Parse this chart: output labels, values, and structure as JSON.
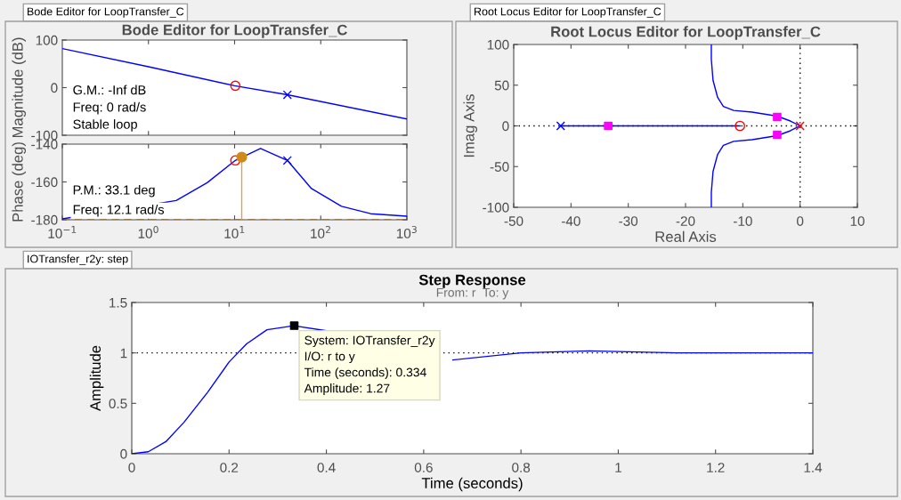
{
  "chart_data": [
    {
      "type": "line",
      "title": "Bode Editor for LoopTransfer_C",
      "ylabel": "Magnitude (dB)",
      "log": "x",
      "xlim": [
        0.1,
        1000
      ],
      "ylim": [
        -100,
        100
      ],
      "yticks": [
        -100,
        0,
        100
      ],
      "tick_labels": "y",
      "annotations": [
        "Bode Editor for LoopTransfer_C",
        "G.M.: -Inf dB",
        "Freq: 0 rad/s",
        "Stable loop"
      ],
      "series": [
        {
          "type": "line",
          "color": "#0000ff",
          "x": [
            0.1,
            1,
            10,
            41,
            1000
          ],
          "values": [
            82,
            44,
            4,
            -15,
            -66
          ]
        },
        {
          "type": "scatter",
          "marker": "circle",
          "color": "#ff0000",
          "x": [
            10.2
          ],
          "values": [
            4
          ]
        },
        {
          "type": "scatter",
          "marker": "cross",
          "color": "#0000ff",
          "x": [
            41
          ],
          "values": [
            -15
          ]
        }
      ]
    },
    {
      "type": "line",
      "ylabel": "Phase (deg)",
      "log": "x",
      "xlim": [
        0.1,
        1000
      ],
      "ylim": [
        -180,
        -140
      ],
      "yticks": [
        -180,
        -160,
        -140
      ],
      "xticks": [
        {
          "value": 0.1,
          "label": "10$^{−1}$"
        },
        {
          "value": 1,
          "label": "10$^{0}$"
        },
        {
          "value": 10,
          "label": "10$^{1}$"
        },
        {
          "value": 100,
          "label": "10$^{2}$"
        },
        {
          "value": 1000,
          "label": "10$^{3}$"
        }
      ],
      "annotations": [
        "P.M.: 33.1 deg",
        "Freq: 12.1 rad/s"
      ],
      "ref_lines": [
        {
          "axis": "y",
          "value": -180,
          "color": "#d9952b",
          "line_style": "dashed"
        }
      ],
      "series": [
        {
          "type": "line",
          "color": "#0000ff",
          "x": [
            0.1,
            2.1,
            4.8,
            10.2,
            20,
            41,
            78,
            174,
            380,
            1000
          ],
          "values": [
            -179.5,
            -169.8,
            -160.4,
            -148.6,
            -142.3,
            -148.6,
            -163.5,
            -172.9,
            -176.8,
            -178.1
          ]
        },
        {
          "type": "scatter",
          "marker": "circle",
          "color": "#ff0000",
          "x": [
            10.2
          ],
          "values": [
            -148.6
          ]
        },
        {
          "type": "scatter",
          "marker": "cross",
          "color": "#0000ff",
          "x": [
            41
          ],
          "values": [
            -148.6
          ]
        },
        {
          "type": "line",
          "color": "#e0a040",
          "x": [
            12.1,
            12.1
          ],
          "values": [
            -180,
            -146.9
          ]
        },
        {
          "type": "lollipop",
          "marker": "circle",
          "color": "#d08a1a",
          "x": [
            12.1
          ],
          "values": [
            -146.9
          ]
        }
      ]
    },
    {
      "type": "line",
      "title": "Root Locus Editor for LoopTransfer_C",
      "xlabel": "Real Axis",
      "ylabel": "Imag Axis",
      "xlim": [
        -50,
        10
      ],
      "ylim": [
        -100,
        100
      ],
      "xticks": [
        -50,
        -40,
        -30,
        -20,
        -10,
        0,
        10
      ],
      "yticks": [
        -100,
        -50,
        0,
        50,
        100
      ],
      "annotations": [
        "Root Locus Editor for LoopTransfer_C"
      ],
      "ref_lines": [
        {
          "axis": "x",
          "value": 0,
          "color": "#000000",
          "line_style": "dotted"
        },
        {
          "axis": "y",
          "value": 0,
          "color": "#000000",
          "line_style": "dotted"
        }
      ],
      "series": [
        {
          "type": "line",
          "color": "#0000ff",
          "x": [
            -41.8,
            -10.5
          ],
          "values": [
            0,
            0
          ]
        },
        {
          "type": "line",
          "color": "#0000ff",
          "x": [
            0,
            -1.7,
            -4.0,
            -8.4,
            -11.6,
            -13.4,
            -14.4,
            -15.2,
            -15.5,
            -15.5
          ],
          "values": [
            0,
            6,
            12,
            17,
            19,
            24,
            35,
            56,
            82,
            100
          ]
        },
        {
          "type": "line",
          "color": "#0000ff",
          "x": [
            0,
            -1.7,
            -4.0,
            -8.4,
            -11.6,
            -13.4,
            -14.4,
            -15.2,
            -15.5,
            -15.5
          ],
          "values": [
            0,
            -6,
            -12,
            -17,
            -19,
            -24,
            -35,
            -56,
            -82,
            -100
          ]
        },
        {
          "type": "scatter",
          "marker": "cross",
          "color": "#0000ff",
          "x": [
            -41.8
          ],
          "values": [
            0
          ]
        },
        {
          "type": "scatter",
          "marker": "cross",
          "color": "#ff0000",
          "x": [
            0
          ],
          "values": [
            0
          ]
        },
        {
          "type": "scatter",
          "marker": "circle",
          "color": "#ff0000",
          "x": [
            -10.5
          ],
          "values": [
            0
          ]
        },
        {
          "type": "scatter",
          "marker": "square",
          "color": "#ff00ff",
          "x": [
            -33.5,
            -4.0,
            -4.0
          ],
          "values": [
            0,
            11,
            -11
          ]
        }
      ]
    },
    {
      "type": "line",
      "title": "Step Response",
      "subtitle": "From: r  To: y",
      "xlabel": "Time (seconds)",
      "ylabel": "Amplitude",
      "xlim": [
        0,
        1.4
      ],
      "ylim": [
        0,
        1.5
      ],
      "xticks": [
        0,
        0.2,
        0.4,
        0.6,
        0.8,
        1,
        1.2,
        1.4
      ],
      "yticks": [
        0,
        0.5,
        1,
        1.5
      ],
      "annotations": [
        "IOTransfer_r2y: step",
        {
          "text": "System: IOTransfer_r2y\nI/O: r to y\nTime (seconds): 0.334\nAmplitude: 1.27",
          "x": 0.334,
          "y": 1.27
        }
      ],
      "ref_lines": [
        {
          "axis": "y",
          "value": 1,
          "color": "#000000",
          "line_style": "dotted"
        }
      ],
      "series": [
        {
          "type": "line",
          "color": "#0000ff",
          "x": [
            0,
            0.034,
            0.07,
            0.107,
            0.156,
            0.2,
            0.236,
            0.278,
            0.333,
            0.4,
            0.5,
            0.66,
            0.8,
            0.94,
            1.12,
            1.4
          ],
          "values": [
            0,
            0.02,
            0.12,
            0.31,
            0.61,
            0.91,
            1.09,
            1.23,
            1.27,
            1.22,
            null,
            0.93,
            1.0,
            1.02,
            1.0,
            1.0
          ]
        },
        {
          "type": "scatter",
          "marker": "square",
          "color": "#000000",
          "x": [
            0.334
          ],
          "values": [
            1.27
          ]
        }
      ]
    }
  ]
}
